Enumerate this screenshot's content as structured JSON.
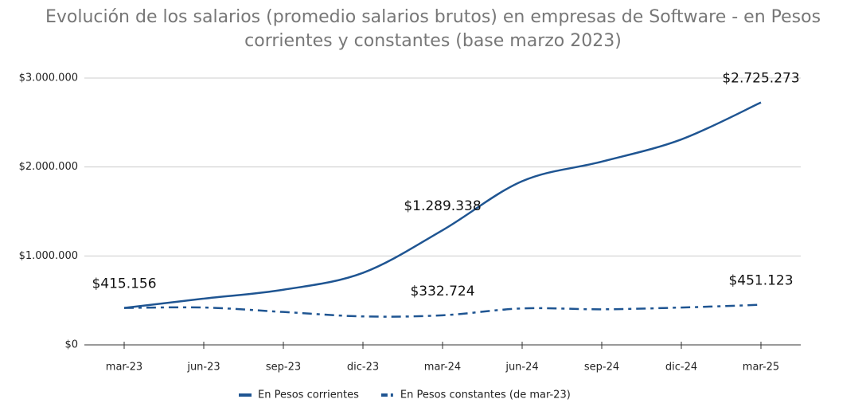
{
  "chart_data": {
    "type": "line",
    "title": "Evolución de los salarios (promedio salarios brutos) en empresas de Software - en Pesos corrientes y constantes (base marzo 2023)",
    "categories": [
      "mar-23",
      "jun-23",
      "sep-23",
      "dic-23",
      "mar-24",
      "jun-24",
      "sep-24",
      "dic-24",
      "mar-25"
    ],
    "series": [
      {
        "name": "En Pesos corrientes",
        "color": "#1f5592",
        "style": "solid",
        "values": [
          415156,
          520000,
          620000,
          810000,
          1289338,
          1840000,
          2060000,
          2310000,
          2725273
        ],
        "value_labels": [
          "$415.156",
          null,
          null,
          null,
          "$1.289.338",
          null,
          null,
          null,
          "$2.725.273"
        ]
      },
      {
        "name": "En Pesos constantes (de mar-23)",
        "color": "#1f5592",
        "style": "dashdot",
        "values": [
          415156,
          420000,
          370000,
          320000,
          332724,
          410000,
          400000,
          420000,
          451123
        ],
        "value_labels": [
          null,
          null,
          null,
          null,
          "$332.724",
          null,
          null,
          null,
          "$451.123"
        ]
      }
    ],
    "ylim": [
      0,
      3000000
    ],
    "yticks": [
      {
        "value": 0,
        "label": "$0"
      },
      {
        "value": 1000000,
        "label": "$1.000.000"
      },
      {
        "value": 2000000,
        "label": "$2.000.000"
      },
      {
        "value": 3000000,
        "label": "$3.000.000"
      }
    ],
    "grid": true,
    "legend": "bottom"
  }
}
